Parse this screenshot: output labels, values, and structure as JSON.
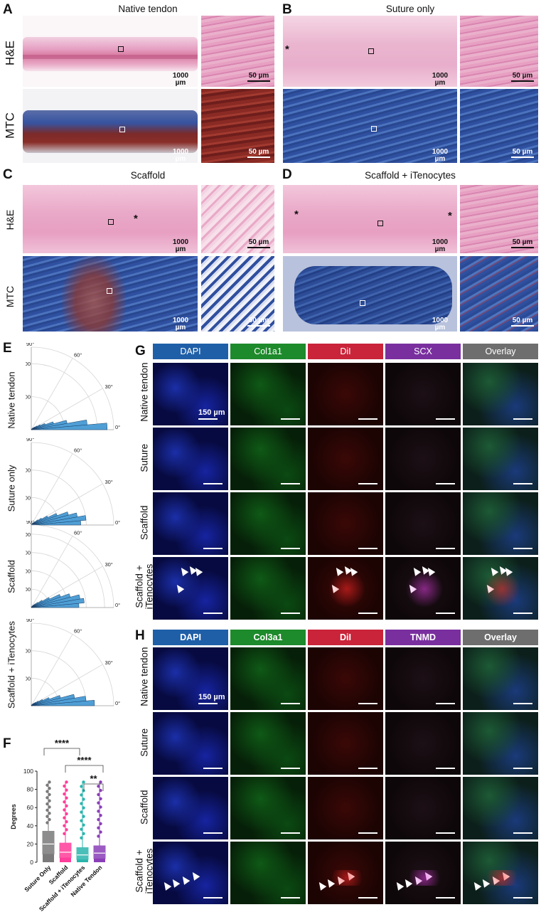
{
  "panels": {
    "A": {
      "letter": "A",
      "title": "Native tendon"
    },
    "B": {
      "letter": "B",
      "title": "Suture only"
    },
    "C": {
      "letter": "C",
      "title": "Scaffold"
    },
    "D": {
      "letter": "D",
      "title": "Scaffold + iTenocytes"
    },
    "E": {
      "letter": "E"
    },
    "F": {
      "letter": "F"
    },
    "G": {
      "letter": "G"
    },
    "H": {
      "letter": "H"
    }
  },
  "stains": {
    "he": "H&E",
    "mtc": "MTC"
  },
  "scales": {
    "low": "1000 µm",
    "high": "50 µm",
    "fluor": "150 µm"
  },
  "asterisk": "*",
  "panel_g": {
    "channels": [
      "DAPI",
      "Col1a1",
      "DiI",
      "SCX",
      "Overlay"
    ],
    "rows": [
      "Native tendon",
      "Suture",
      "Scaffold",
      "Scaffold + iTenocytes"
    ]
  },
  "panel_h": {
    "channels": [
      "DAPI",
      "Col3a1",
      "DiI",
      "TNMD",
      "Overlay"
    ],
    "rows": [
      "Native tendon",
      "Suture",
      "Scaffold",
      "Scaffold + iTenocytes"
    ]
  },
  "channel_colors": {
    "DAPI": "#1f5fa8",
    "green": "#1d8a2b",
    "DiI": "#c9243a",
    "purple": "#7a2f9f",
    "Overlay": "#6e6e6e"
  },
  "chart_data": [
    {
      "type": "polar-histogram",
      "group": "Native tendon",
      "rmax": 2500,
      "rticks": [
        1000,
        2000
      ],
      "angle_ticks": [
        "0°",
        "30°",
        "60°",
        "90°"
      ],
      "bins_deg": [
        0,
        5,
        10,
        15,
        20,
        25,
        30,
        35,
        40,
        45,
        50,
        55,
        60,
        65,
        70,
        75,
        80,
        85
      ],
      "values": [
        2300,
        1700,
        1100,
        700,
        450,
        300,
        200,
        130,
        90,
        60,
        40,
        30,
        20,
        15,
        10,
        8,
        5,
        5
      ],
      "color": "#4f9fd6"
    },
    {
      "type": "polar-histogram",
      "group": "Suture only",
      "rmax": 1500,
      "rticks": [
        500,
        1000
      ],
      "angle_ticks": [
        "0°",
        "30°",
        "60°",
        "90°"
      ],
      "bins_deg": [
        0,
        5,
        10,
        15,
        20,
        25,
        30,
        35,
        40,
        45,
        50,
        55,
        60,
        65,
        70,
        75,
        80,
        85
      ],
      "values": [
        900,
        1000,
        850,
        700,
        500,
        330,
        220,
        150,
        90,
        60,
        40,
        30,
        20,
        15,
        10,
        10,
        8,
        5
      ],
      "color": "#4f9fd6"
    },
    {
      "type": "polar-histogram",
      "group": "Scaffold",
      "rmax": 4500,
      "rticks": [
        1000,
        2000,
        3000,
        4000
      ],
      "angle_ticks": [
        "0°",
        "30°",
        "60°",
        "90°"
      ],
      "bins_deg": [
        0,
        5,
        10,
        15,
        20,
        25,
        30,
        35,
        40,
        45,
        50,
        55,
        60,
        65,
        70,
        75,
        80,
        85
      ],
      "values": [
        2600,
        2900,
        2700,
        2200,
        1700,
        1100,
        700,
        450,
        300,
        200,
        130,
        90,
        60,
        40,
        30,
        20,
        15,
        10
      ],
      "color": "#4f9fd6"
    },
    {
      "type": "polar-histogram",
      "group": "Scaffold + iTenocytes",
      "rmax": 1500,
      "rticks": [
        500,
        1000
      ],
      "angle_ticks": [
        "0°",
        "30°",
        "60°",
        "90°"
      ],
      "bins_deg": [
        0,
        5,
        10,
        15,
        20,
        25,
        30,
        35,
        40,
        45,
        50,
        55,
        60,
        65,
        70,
        75,
        80,
        85
      ],
      "values": [
        1150,
        1000,
        800,
        550,
        350,
        230,
        150,
        100,
        70,
        50,
        35,
        25,
        18,
        12,
        10,
        8,
        5,
        5
      ],
      "color": "#4f9fd6"
    },
    {
      "type": "box",
      "ylabel": "Degrees",
      "ylim": [
        0,
        100
      ],
      "yticks": [
        0,
        20,
        40,
        60,
        80,
        100
      ],
      "categories": [
        "Suture Only",
        "Scaffold",
        "Scaffold + iTenocytes",
        "Native Tendon"
      ],
      "colors": [
        "#7a7a7a",
        "#ff3d9a",
        "#2bb5ad",
        "#8a3fb8"
      ],
      "boxes": [
        {
          "q1": 9,
          "median": 20,
          "q3": 34,
          "whisker_low": 0,
          "whisker_high": 88
        },
        {
          "q1": 5,
          "median": 11,
          "q3": 21,
          "whisker_low": 0,
          "whisker_high": 88
        },
        {
          "q1": 3,
          "median": 8,
          "q3": 16,
          "whisker_low": 0,
          "whisker_high": 88
        },
        {
          "q1": 4,
          "median": 10,
          "q3": 18,
          "whisker_low": 0,
          "whisker_high": 88
        }
      ],
      "significance": [
        "****",
        "****",
        "**"
      ]
    }
  ]
}
